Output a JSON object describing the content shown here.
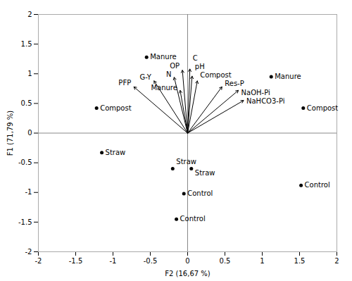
{
  "chart_data": {
    "type": "biplot",
    "xlabel": "F2 (16,67 %)",
    "ylabel": "F1 (71,79 %)",
    "xlim": [
      -2,
      2
    ],
    "ylim": [
      -2,
      2
    ],
    "xticks": [
      -2,
      -1.5,
      -1,
      -0.5,
      0,
      0.5,
      1,
      1.5,
      2
    ],
    "yticks": [
      -2,
      -1.5,
      -1,
      -0.5,
      0,
      0.5,
      1,
      1.5,
      2
    ],
    "grid": false,
    "arrows": {
      "color": "#000000",
      "labels": [
        "G-Y",
        "PFP",
        "N",
        "OP",
        "C",
        "pH",
        "Compost",
        "Manure",
        "Res-P",
        "NaOH-Pi",
        "NaHCO3-Pi"
      ],
      "x": [
        -0.45,
        -0.72,
        -0.18,
        -0.07,
        0.03,
        0.06,
        0.13,
        -0.1,
        0.46,
        0.68,
        0.75
      ],
      "y": [
        0.88,
        0.78,
        0.94,
        1.06,
        1.08,
        0.96,
        0.88,
        0.72,
        0.78,
        0.72,
        0.55
      ]
    },
    "points": {
      "color": "#000000",
      "labels": [
        "Manure",
        "Compost",
        "Straw",
        "Straw",
        "Straw",
        "Control",
        "Control",
        "Control",
        "Manure",
        "Compost"
      ],
      "x": [
        -0.55,
        -1.22,
        -1.15,
        -0.2,
        0.05,
        -0.05,
        -0.15,
        1.52,
        1.12,
        1.55
      ],
      "y": [
        1.28,
        0.42,
        -0.33,
        -0.6,
        -0.6,
        -1.02,
        -1.45,
        -0.88,
        0.95,
        0.42
      ]
    }
  }
}
